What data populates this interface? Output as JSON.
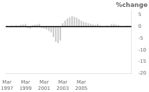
{
  "chart_data": {
    "type": "bar",
    "title": "%change",
    "categories": [
      "Mar\n1997",
      null,
      null,
      null,
      null,
      null,
      null,
      null,
      "Mar\n1999",
      null,
      null,
      null,
      null,
      null,
      null,
      null,
      "Mar\n2001",
      null,
      null,
      null,
      null,
      null,
      null,
      null,
      "Mar\n2003",
      null,
      null,
      null,
      null,
      null,
      null,
      null,
      "Mar\n2005",
      null,
      null,
      null,
      null,
      null,
      null,
      null,
      null,
      null,
      null,
      null,
      null,
      null,
      null,
      null,
      null,
      null,
      null,
      null,
      null,
      null
    ],
    "values": [
      0.4,
      -0.3,
      0.5,
      0.3,
      0.5,
      0.4,
      0.8,
      1.0,
      1.2,
      -0.6,
      -0.8,
      0.5,
      0.8,
      1.0,
      1.2,
      -0.5,
      -0.8,
      -1.2,
      -1.8,
      -2.5,
      -4.5,
      -6.5,
      -7.0,
      -6.0,
      1.5,
      2.5,
      3.5,
      4.0,
      4.5,
      4.2,
      3.8,
      3.2,
      2.5,
      2.0,
      1.8,
      1.5,
      1.2,
      1.0,
      0.8,
      1.2,
      0.5,
      0.3,
      0.2,
      0.5,
      0.3,
      1.0,
      1.2,
      0.8,
      0.6,
      0.3,
      0.2,
      0.4,
      0.5,
      0.3
    ],
    "color": "#c8c8c8",
    "ylim": [
      -20,
      7
    ],
    "yticks": [
      5,
      0,
      -5,
      -10,
      -15,
      -20
    ],
    "grid": false
  }
}
